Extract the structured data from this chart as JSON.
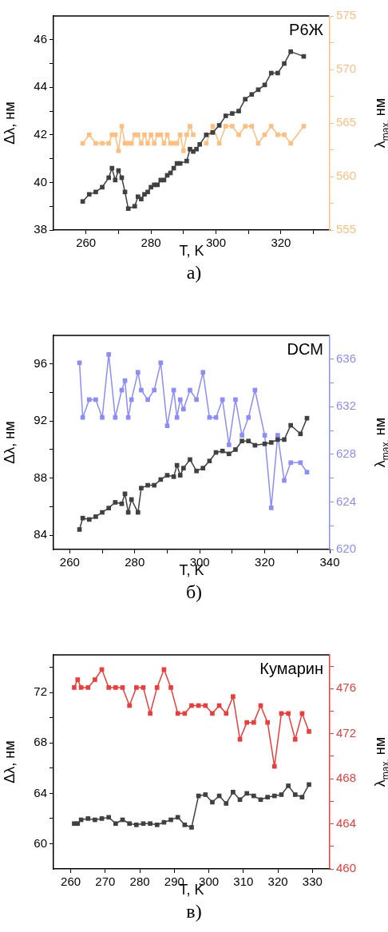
{
  "chart_data": [
    {
      "type": "line",
      "xlabel": "T, K",
      "ylabel": "Δλ, нм",
      "y2label": "λ$_{max.}$ нм",
      "annotations": [
        "Р6Ж",
        "а)"
      ],
      "marker": "square",
      "xlim": [
        250,
        335
      ],
      "xticks": [
        260,
        {
          "value": 270,
          "label": null
        },
        280,
        {
          "value": 290,
          "label": null
        },
        300,
        {
          "value": 310,
          "label": null
        },
        320,
        {
          "value": 330,
          "label": null
        }
      ],
      "ylim": [
        38,
        47
      ],
      "yticks": [
        38,
        {
          "value": 39,
          "label": null
        },
        40,
        {
          "value": 41,
          "label": null
        },
        42,
        {
          "value": 43,
          "label": null
        },
        44,
        {
          "value": 45,
          "label": null
        },
        46
      ],
      "y2lim": [
        555,
        575
      ],
      "y2ticks": [
        555,
        {
          "value": 557.5,
          "label": null
        },
        560,
        {
          "value": 562.5,
          "label": null
        },
        565,
        {
          "value": 567.5,
          "label": null
        },
        570,
        {
          "value": 572.5,
          "label": null
        },
        575
      ],
      "series": [
        {
          "color": "#404040",
          "x": [
            259,
            261,
            263,
            265,
            267,
            268,
            269,
            270,
            271,
            272,
            273,
            275,
            276,
            277,
            278,
            279,
            280,
            281,
            282,
            283,
            284,
            285,
            286,
            287,
            288,
            289,
            291,
            292,
            293,
            294,
            295,
            297,
            299,
            301,
            303,
            305,
            307,
            309,
            311,
            313,
            315,
            317,
            319,
            321,
            323,
            327
          ],
          "values": [
            39.2,
            39.5,
            39.6,
            39.8,
            40.2,
            40.6,
            40.1,
            40.5,
            40.2,
            39.6,
            38.9,
            39.0,
            39.4,
            39.3,
            39.5,
            39.6,
            39.8,
            39.9,
            39.9,
            40.1,
            40.1,
            40.3,
            40.4,
            40.6,
            40.8,
            40.8,
            40.9,
            41.4,
            41.3,
            41.4,
            41.6,
            42.0,
            42.1,
            42.4,
            42.8,
            42.9,
            43.0,
            43.5,
            43.7,
            43.9,
            44.1,
            44.6,
            44.6,
            45.0,
            45.5,
            45.3
          ]
        },
        {
          "color": "#ffbf80",
          "axis": "y2",
          "x": [
            259,
            261,
            263,
            265,
            267,
            268,
            269,
            270,
            271,
            272,
            273,
            274,
            275,
            276,
            277,
            278,
            279,
            280,
            281,
            282,
            283,
            284,
            285,
            286,
            287,
            288,
            289,
            290,
            291,
            292,
            293,
            295,
            297,
            299,
            301,
            303,
            305,
            307,
            309,
            311,
            313,
            315,
            317,
            319,
            321,
            323,
            327
          ],
          "values": [
            563.1,
            563.9,
            563.1,
            563.1,
            563.1,
            563.9,
            563.9,
            562.4,
            564.7,
            563.1,
            563.1,
            563.1,
            563.9,
            563.9,
            563.1,
            563.9,
            563.1,
            563.9,
            563.1,
            563.9,
            563.9,
            563.1,
            563.9,
            563.1,
            563.1,
            563.1,
            563.9,
            562.4,
            563.9,
            564.7,
            563.9,
            null,
            563.1,
            564.7,
            563.1,
            564.7,
            564.7,
            563.9,
            564.7,
            564.7,
            563.1,
            563.9,
            564.7,
            563.9,
            563.9,
            563.1,
            564.7
          ]
        }
      ]
    },
    {
      "type": "line",
      "xlabel": "T, K",
      "ylabel": "Δλ, нм",
      "y2label": "λ$_{max.}$ нм",
      "annotations": [
        "DCM",
        "б)"
      ],
      "marker": "square",
      "xlim": [
        255,
        340
      ],
      "xticks": [
        260,
        {
          "value": 270,
          "label": null
        },
        280,
        {
          "value": 290,
          "label": null
        },
        300,
        {
          "value": 310,
          "label": null
        },
        320,
        {
          "value": 330,
          "label": null
        },
        340
      ],
      "ylim": [
        83,
        98
      ],
      "yticks": [
        84,
        {
          "value": 86,
          "label": null
        },
        88,
        {
          "value": 90,
          "label": null
        },
        92,
        {
          "value": 94,
          "label": null
        },
        96
      ],
      "y2lim": [
        620,
        638
      ],
      "y2ticks": [
        620,
        {
          "value": 622,
          "label": null
        },
        624,
        {
          "value": 626,
          "label": null
        },
        628,
        {
          "value": 630,
          "label": null
        },
        632,
        {
          "value": 634,
          "label": null
        },
        636
      ],
      "x": [
        263,
        264,
        266,
        268,
        270,
        272,
        274,
        276,
        277,
        278,
        279,
        281,
        282,
        284,
        286,
        288,
        290,
        292,
        293,
        294,
        295,
        297,
        299,
        301,
        303,
        305,
        307,
        309,
        311,
        313,
        315,
        317,
        320,
        322,
        324,
        326,
        328,
        331,
        333
      ],
      "series": [
        {
          "color": "#404040",
          "values": [
            84.4,
            85.2,
            85.1,
            85.3,
            85.6,
            85.9,
            86.3,
            86.2,
            86.9,
            85.6,
            86.5,
            85.6,
            87.3,
            87.5,
            87.5,
            87.9,
            88.2,
            88.1,
            88.9,
            88.2,
            88.7,
            89.3,
            88.5,
            88.7,
            89.2,
            89.8,
            89.9,
            89.7,
            90.0,
            90.6,
            90.6,
            90.3,
            90.4,
            90.5,
            90.7,
            90.7,
            91.7,
            91.1,
            92.2
          ]
        },
        {
          "color": "#8c8cff",
          "axis": "y2",
          "values": [
            635.7,
            631.1,
            632.6,
            632.6,
            631.1,
            636.4,
            631.1,
            633.4,
            634.2,
            631.1,
            632.6,
            634.9,
            633.4,
            632.6,
            633.4,
            635.7,
            630.4,
            633.4,
            631.1,
            632.6,
            631.8,
            633.4,
            632.6,
            634.9,
            631.1,
            631.1,
            632.6,
            628.8,
            632.6,
            629.6,
            631.1,
            633.4,
            629.6,
            623.5,
            629.6,
            625.8,
            627.3,
            627.3,
            626.5
          ]
        }
      ]
    },
    {
      "type": "line",
      "xlabel": "T, K",
      "ylabel": "Δλ, нм",
      "y2label": "λ$_{max.}$ нм",
      "annotations": [
        "Кумарин",
        "в)"
      ],
      "marker": "square",
      "xlim": [
        255,
        335
      ],
      "xticks": [
        260,
        270,
        280,
        290,
        300,
        310,
        320,
        330
      ],
      "ylim": [
        58,
        75
      ],
      "yticks": [
        60,
        {
          "value": 62,
          "label": null
        },
        64,
        {
          "value": 66,
          "label": null
        },
        68,
        {
          "value": 70,
          "label": null
        },
        72,
        {
          "value": 74,
          "label": null
        }
      ],
      "y2lim": [
        460,
        479
      ],
      "y2ticks": [
        460,
        {
          "value": 462,
          "label": null
        },
        464,
        {
          "value": 466,
          "label": null
        },
        468,
        {
          "value": 470,
          "label": null
        },
        472,
        {
          "value": 474,
          "label": null
        },
        476,
        {
          "value": 478,
          "label": null
        }
      ],
      "x": [
        261,
        262,
        263,
        265,
        267,
        269,
        271,
        273,
        275,
        277,
        279,
        281,
        283,
        285,
        287,
        289,
        291,
        293,
        295,
        297,
        299,
        301,
        303,
        305,
        307,
        309,
        311,
        313,
        315,
        317,
        319,
        321,
        323,
        325,
        327,
        329
      ],
      "series": [
        {
          "color": "#404040",
          "values": [
            61.6,
            61.6,
            61.9,
            62.0,
            61.9,
            62.0,
            62.1,
            61.6,
            61.9,
            61.6,
            61.5,
            61.6,
            61.6,
            61.5,
            61.7,
            61.9,
            62.1,
            61.5,
            61.3,
            63.8,
            63.9,
            63.3,
            63.8,
            63.2,
            64.1,
            63.5,
            64.0,
            63.8,
            63.5,
            63.7,
            63.8,
            63.9,
            64.6,
            63.9,
            63.7,
            64.7
          ]
        },
        {
          "color": "#ee3b3b",
          "axis": "y2",
          "values": [
            476.1,
            476.8,
            476.1,
            476.1,
            476.8,
            477.7,
            476.1,
            476.1,
            476.1,
            474.5,
            476.1,
            476.1,
            473.8,
            476.1,
            477.7,
            476.1,
            473.8,
            473.8,
            474.5,
            474.5,
            474.5,
            473.8,
            474.5,
            473.8,
            475.3,
            471.5,
            473.0,
            473.0,
            474.5,
            473.0,
            469.1,
            473.8,
            473.8,
            471.5,
            473.8,
            472.2
          ]
        }
      ]
    }
  ]
}
